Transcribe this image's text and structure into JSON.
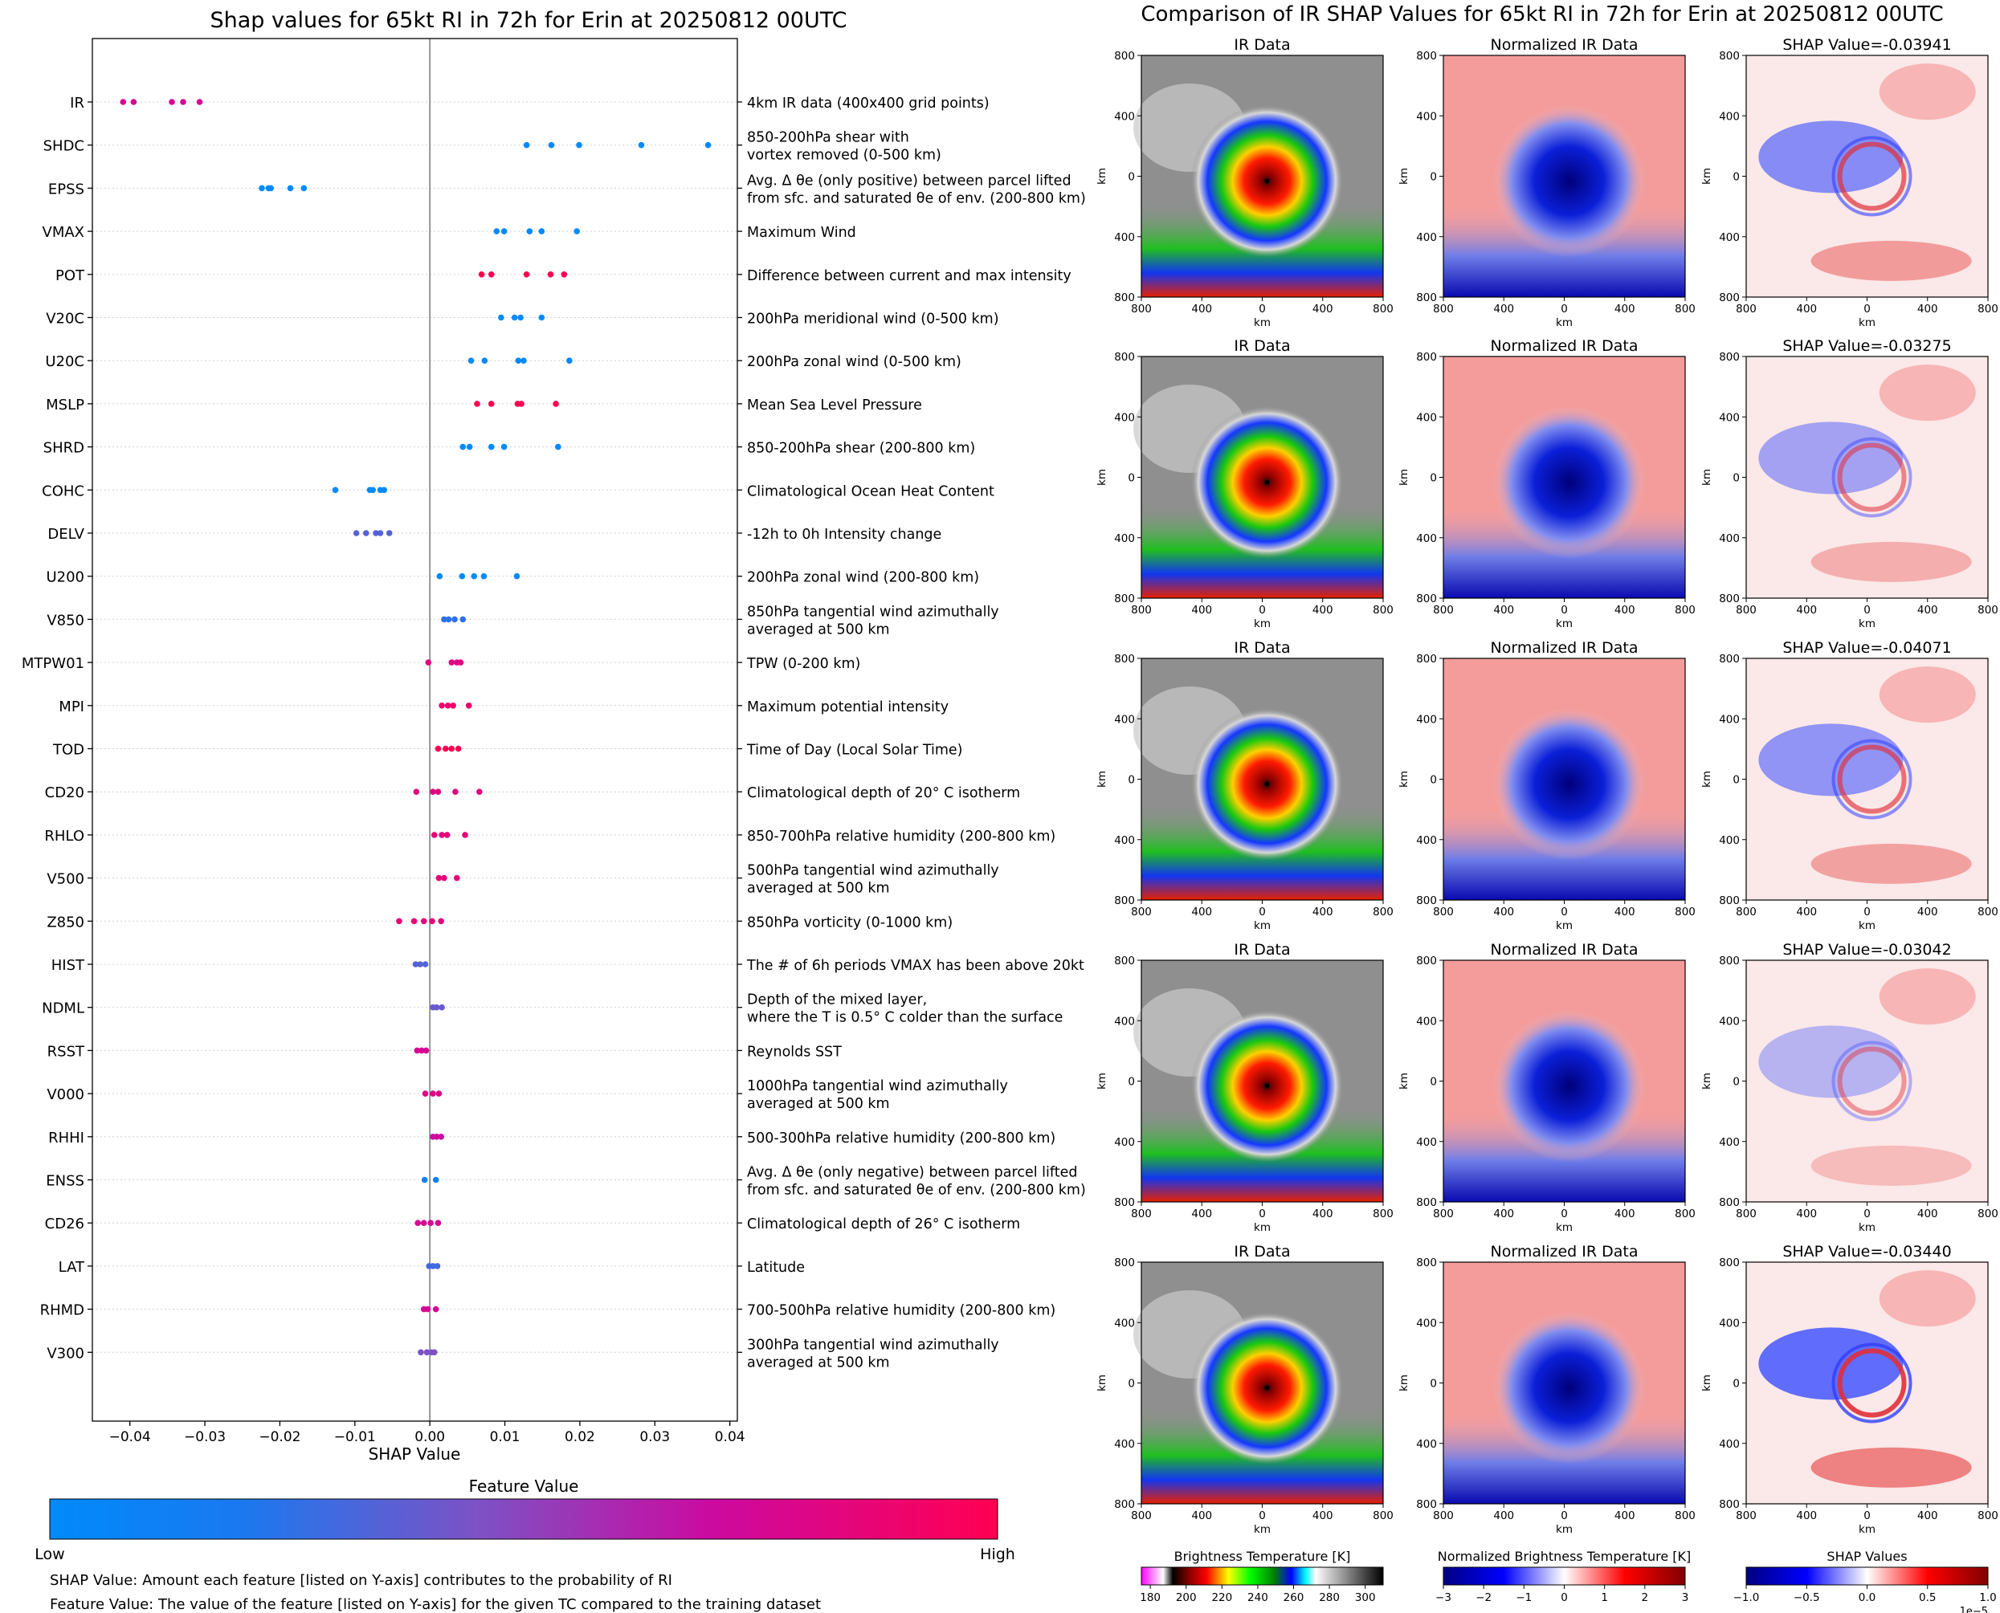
{
  "left_panel": {
    "title": "Shap values for 65kt RI in 72h for Erin at 20250812 00UTC",
    "xlabel": "SHAP Value",
    "colorbar_title": "Feature Value",
    "colorbar_low": "Low",
    "colorbar_high": "High",
    "footnote_1": "SHAP Value: Amount each feature [listed on Y-axis] contributes to the probability of RI",
    "footnote_2": "Feature Value: The value of the feature [listed on Y-axis] for the given TC compared to the training dataset"
  },
  "right_panel": {
    "title": "Comparison of IR SHAP Values for 65kt RI in 72h for Erin at 20250812 00UTC",
    "col_titles": [
      "IR Data",
      "Normalized IR Data"
    ],
    "shap_titles": [
      "SHAP Value=-0.03941",
      "SHAP Value=-0.03275",
      "SHAP Value=-0.04071",
      "SHAP Value=-0.03042",
      "SHAP Value=-0.03440"
    ],
    "axis_unit": "km",
    "ticks": [
      "800",
      "400",
      "0",
      "400",
      "800"
    ],
    "colorbars": [
      {
        "label": "Brightness Temperature [K]",
        "ticks": [
          "180",
          "200",
          "220",
          "240",
          "260",
          "280",
          "300"
        ],
        "scale_note": ""
      },
      {
        "label": "Normalized Brightness Temperature [K]",
        "ticks": [
          "−3",
          "−2",
          "−1",
          "0",
          "1",
          "2",
          "3"
        ],
        "scale_note": ""
      },
      {
        "label": "SHAP Values",
        "ticks": [
          "−1.0",
          "−0.5",
          "0.0",
          "0.5",
          "1.0"
        ],
        "scale_note": "1e−5"
      }
    ]
  },
  "colors": {
    "low": "#008afb",
    "mid": "#7c52c5",
    "high": "#ff0052"
  },
  "chart_data": [
    {
      "type": "scatter",
      "title": "Shap values for 65kt RI in 72h for Erin at 20250812 00UTC",
      "xlabel": "SHAP Value",
      "xlim": [
        -0.045,
        0.041
      ],
      "xticks": [
        -0.04,
        -0.03,
        -0.02,
        -0.01,
        0.0,
        0.01,
        0.02,
        0.03,
        0.04
      ],
      "xtick_labels": [
        "−0.04",
        "−0.03",
        "−0.02",
        "−0.01",
        "0.00",
        "0.01",
        "0.02",
        "0.03",
        "0.04"
      ],
      "grid": "horizontal dotted",
      "features": [
        {
          "name": "IR",
          "description": "4km IR data (400x400 grid points)",
          "color": 0.75,
          "shap": [
            -0.0409,
            -0.0395,
            -0.0344,
            -0.0329,
            -0.0307
          ]
        },
        {
          "name": "SHDC",
          "description": "850-200hPa shear with\nvortex removed (0-500 km)",
          "color": 0.0,
          "shap": [
            0.0129,
            0.0162,
            0.0199,
            0.0282,
            0.0371
          ]
        },
        {
          "name": "EPSS",
          "description": "Avg. Δ θe (only positive) between parcel lifted\nfrom sfc. and saturated θe of env. (200-800 km)",
          "color": 0.0,
          "shap": [
            -0.0224,
            -0.0215,
            -0.0212,
            -0.0186,
            -0.0168
          ]
        },
        {
          "name": "VMAX",
          "description": "Maximum Wind",
          "color": 0.0,
          "shap": [
            0.0089,
            0.0099,
            0.0133,
            0.0149,
            0.0196
          ]
        },
        {
          "name": "POT",
          "description": "Difference between current and max intensity",
          "color": 1.0,
          "shap": [
            0.0069,
            0.0082,
            0.0129,
            0.0161,
            0.0179
          ]
        },
        {
          "name": "V20C",
          "description": "200hPa meridional wind (0-500 km)",
          "color": 0.0,
          "shap": [
            0.0095,
            0.0113,
            0.0121,
            0.0149
          ]
        },
        {
          "name": "U20C",
          "description": "200hPa zonal wind (0-500 km)",
          "color": 0.0,
          "shap": [
            0.0055,
            0.0073,
            0.0118,
            0.0125,
            0.0186
          ]
        },
        {
          "name": "MSLP",
          "description": "Mean Sea Level Pressure",
          "color": 1.0,
          "shap": [
            0.0063,
            0.0082,
            0.0117,
            0.0122,
            0.0168
          ]
        },
        {
          "name": "SHRD",
          "description": "850-200hPa shear (200-800 km)",
          "color": 0.0,
          "shap": [
            0.0044,
            0.0053,
            0.0082,
            0.0099,
            0.0171
          ]
        },
        {
          "name": "COHC",
          "description": "Climatological Ocean Heat Content",
          "color": 0.0,
          "shap": [
            -0.0126,
            -0.008,
            -0.0076,
            -0.0066,
            -0.0061
          ]
        },
        {
          "name": "DELV",
          "description": "-12h to 0h Intensity change",
          "color": 0.35,
          "shap": [
            -0.0098,
            -0.0085,
            -0.0072,
            -0.0066,
            -0.0054
          ]
        },
        {
          "name": "U200",
          "description": "200hPa zonal wind (200-800 km)",
          "color": 0.0,
          "shap": [
            0.0013,
            0.0043,
            0.0059,
            0.0072,
            0.0116
          ]
        },
        {
          "name": "V850",
          "description": "850hPa tangential wind azimuthally\naveraged at 500 km",
          "color": 0.25,
          "shap": [
            0.0019,
            0.0025,
            0.0033,
            0.0044
          ]
        },
        {
          "name": "MTPW01",
          "description": "TPW (0-200 km)",
          "color": 0.82,
          "shap": [
            -0.0002,
            0.0029,
            0.0036,
            0.0041
          ]
        },
        {
          "name": "MPI",
          "description": "Maximum potential intensity",
          "color": 0.9,
          "shap": [
            0.0016,
            0.0024,
            0.0031,
            0.0052
          ]
        },
        {
          "name": "TOD",
          "description": "Time of Day (Local Solar Time)",
          "color": 1.0,
          "shap": [
            0.0011,
            0.0021,
            0.0029,
            0.0038
          ]
        },
        {
          "name": "CD20",
          "description": "Climatological depth of 20° C isotherm",
          "color": 0.82,
          "shap": [
            -0.0018,
            0.0004,
            0.0011,
            0.0034,
            0.0066
          ]
        },
        {
          "name": "RHLO",
          "description": "850-700hPa relative humidity (200-800 km)",
          "color": 0.85,
          "shap": [
            0.0006,
            0.0016,
            0.0023,
            0.0047
          ]
        },
        {
          "name": "V500",
          "description": "500hPa tangential wind azimuthally\naveraged at 500 km",
          "color": 0.85,
          "shap": [
            0.0012,
            0.0019,
            0.0036
          ]
        },
        {
          "name": "Z850",
          "description": "850hPa vorticity (0-1000 km)",
          "color": 0.85,
          "shap": [
            -0.0041,
            -0.0021,
            -0.0008,
            0.0003,
            0.0015
          ]
        },
        {
          "name": "HIST",
          "description": "The # of 6h periods VMAX has been above 20kt",
          "color": 0.35,
          "shap": [
            -0.0019,
            -0.0013,
            -0.0006
          ]
        },
        {
          "name": "NDML",
          "description": "Depth of the mixed layer,\nwhere the T is 0.5° C colder than the surface",
          "color": 0.4,
          "shap": [
            0.0004,
            0.0009,
            0.0016
          ]
        },
        {
          "name": "RSST",
          "description": "Reynolds SST",
          "color": 0.75,
          "shap": [
            -0.0017,
            -0.0011,
            -0.0005
          ]
        },
        {
          "name": "V000",
          "description": "1000hPa tangential wind azimuthally\naveraged at 500 km",
          "color": 0.8,
          "shap": [
            -0.0006,
            0.0004,
            0.0012
          ]
        },
        {
          "name": "RHHI",
          "description": "500-300hPa relative humidity (200-800 km)",
          "color": 0.7,
          "shap": [
            0.0004,
            0.0009,
            0.0015
          ]
        },
        {
          "name": "ENSS",
          "description": "Avg. Δ θe (only negative) between parcel lifted\nfrom sfc. and saturated θe of env. (200-800 km)",
          "color": 0.1,
          "shap": [
            -0.0007,
            0.0008
          ]
        },
        {
          "name": "CD26",
          "description": "Climatological depth of 26° C isotherm",
          "color": 0.75,
          "shap": [
            -0.0016,
            -0.0008,
            0.0001,
            0.0011
          ]
        },
        {
          "name": "LAT",
          "description": "Latitude",
          "color": 0.3,
          "shap": [
            -0.0001,
            0.0004,
            0.001
          ]
        },
        {
          "name": "RHMD",
          "description": "700-500hPa relative humidity (200-800 km)",
          "color": 0.75,
          "shap": [
            -0.0008,
            -0.0003,
            0.0008
          ]
        },
        {
          "name": "V300",
          "description": "300hPa tangential wind azimuthally\naveraged at 500 km",
          "color": 0.45,
          "shap": [
            -0.0012,
            -0.0004,
            0.0002,
            0.0006
          ]
        }
      ]
    },
    {
      "type": "heatmap",
      "title": "Comparison of IR SHAP Values for 65kt RI in 72h for Erin at 20250812 00UTC",
      "rows": 5,
      "columns": [
        "IR Data",
        "Normalized IR Data",
        "SHAP"
      ],
      "shap_values": [
        -0.03941,
        -0.03275,
        -0.04071,
        -0.03042,
        -0.0344
      ],
      "xlabel": "km",
      "ylabel": "km",
      "xlim": [
        -800,
        800
      ],
      "ylim": [
        -800,
        800
      ]
    }
  ]
}
